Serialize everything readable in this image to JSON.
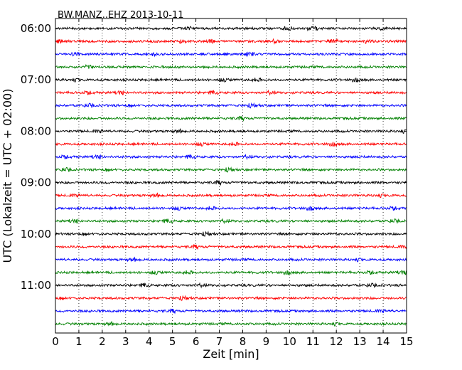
{
  "chart_data": {
    "type": "line",
    "subtype": "dayplot-seismogram",
    "title": "BW.MANZ..EHZ 2013-10-11",
    "xlabel": "Zeit  [min]",
    "ylabel": "UTC (Lokalzeit = UTC + 02:00)",
    "xlim": [
      0,
      15
    ],
    "x_ticks": [
      0,
      1,
      2,
      3,
      4,
      5,
      6,
      7,
      8,
      9,
      10,
      11,
      12,
      13,
      14,
      15
    ],
    "x_grid": "vertical dotted",
    "trace_interval_minutes": 15,
    "trace_colors": [
      "#000000",
      "#ff0000",
      "#0000ff",
      "#008000"
    ],
    "y_ticks": [
      "06:00",
      "07:00",
      "08:00",
      "09:00",
      "10:00",
      "11:00"
    ],
    "traces": [
      "06:00",
      "06:15",
      "06:30",
      "06:45",
      "07:00",
      "07:15",
      "07:30",
      "07:45",
      "08:00",
      "08:15",
      "08:30",
      "08:45",
      "09:00",
      "09:15",
      "09:30",
      "09:45",
      "10:00",
      "10:15",
      "10:30",
      "10:45",
      "11:00",
      "11:15",
      "11:30",
      "11:45"
    ]
  }
}
